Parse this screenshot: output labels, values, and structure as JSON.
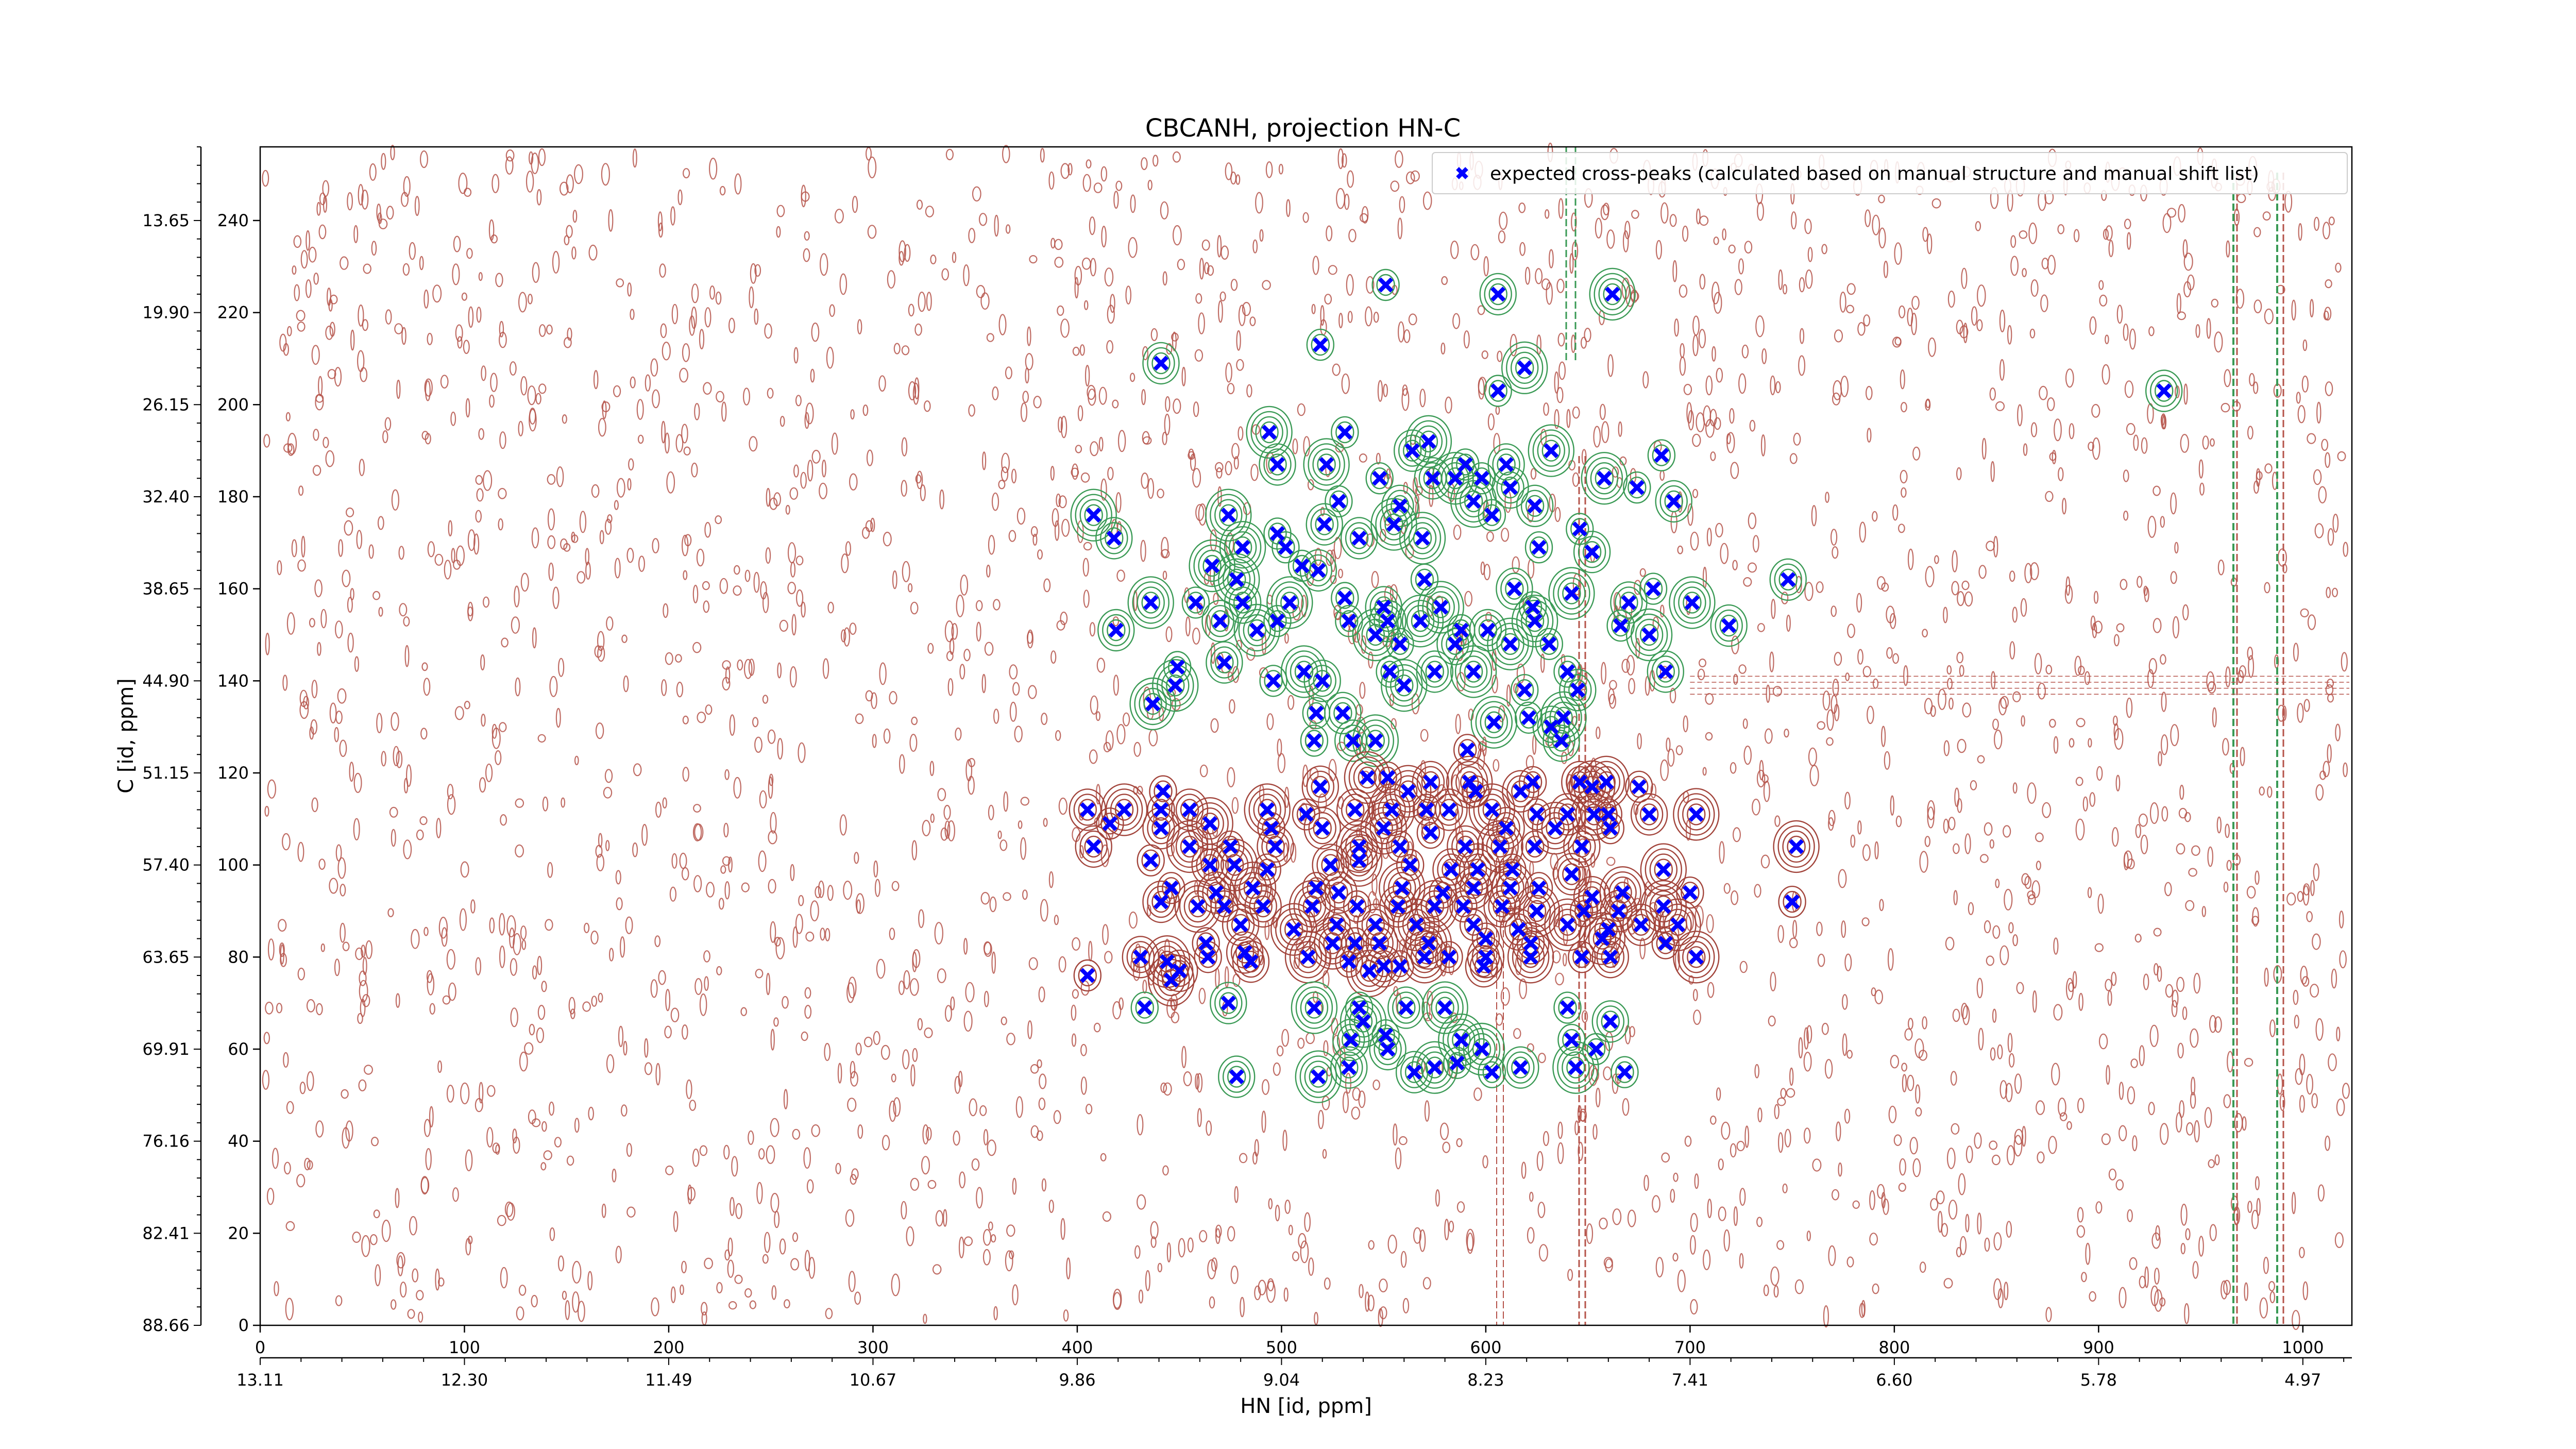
{
  "chart_data": {
    "type": "scatter",
    "title": "CBCANH, projection HN-C",
    "xlabel": "HN [id, ppm]",
    "ylabel": "C [id, ppm]",
    "xlim": [
      0,
      1024
    ],
    "ylim": [
      0,
      256
    ],
    "x_ticks": [
      0,
      100,
      200,
      300,
      400,
      500,
      600,
      700,
      800,
      900,
      1000
    ],
    "y_ticks": [
      0,
      20,
      40,
      60,
      80,
      100,
      120,
      140,
      160,
      180,
      200,
      220,
      240
    ],
    "x_ppm_ticks": [
      {
        "value": 0,
        "label": "13.11"
      },
      {
        "value": 100,
        "label": "12.30"
      },
      {
        "value": 200,
        "label": "11.49"
      },
      {
        "value": 300,
        "label": "10.67"
      },
      {
        "value": 400,
        "label": "9.86"
      },
      {
        "value": 500,
        "label": "9.04"
      },
      {
        "value": 600,
        "label": "8.23"
      },
      {
        "value": 700,
        "label": "7.41"
      },
      {
        "value": 800,
        "label": "6.60"
      },
      {
        "value": 900,
        "label": "5.78"
      },
      {
        "value": 1000,
        "label": "4.97"
      }
    ],
    "y_ppm_ticks": [
      {
        "value": 0,
        "label": "88.66"
      },
      {
        "value": 20,
        "label": "82.41"
      },
      {
        "value": 40,
        "label": "76.16"
      },
      {
        "value": 60,
        "label": "69.91"
      },
      {
        "value": 80,
        "label": "63.65"
      },
      {
        "value": 100,
        "label": "57.40"
      },
      {
        "value": 120,
        "label": "51.15"
      },
      {
        "value": 140,
        "label": "44.90"
      },
      {
        "value": 160,
        "label": "38.65"
      },
      {
        "value": 180,
        "label": "32.40"
      },
      {
        "value": 200,
        "label": "26.15"
      },
      {
        "value": 220,
        "label": "19.90"
      },
      {
        "value": 240,
        "label": "13.65"
      }
    ],
    "grid": false,
    "legend_position": "top-right",
    "series": [
      {
        "name": "expected cross-peaks (calculated based on manual structure and manual shift list)",
        "color": "#0000ff",
        "marker": "x",
        "points": [
          [
            551,
            226
          ],
          [
            606,
            224
          ],
          [
            662,
            224
          ],
          [
            519,
            213
          ],
          [
            441,
            209
          ],
          [
            619,
            208
          ],
          [
            606,
            203
          ],
          [
            932,
            203
          ],
          [
            494,
            194
          ],
          [
            531,
            194
          ],
          [
            564,
            190
          ],
          [
            572,
            192
          ],
          [
            590,
            187
          ],
          [
            610,
            187
          ],
          [
            632,
            190
          ],
          [
            686,
            189
          ],
          [
            498,
            187
          ],
          [
            522,
            187
          ],
          [
            548,
            184
          ],
          [
            574,
            184
          ],
          [
            585,
            184
          ],
          [
            598,
            184
          ],
          [
            612,
            182
          ],
          [
            658,
            184
          ],
          [
            674,
            182
          ],
          [
            692,
            179
          ],
          [
            474,
            176
          ],
          [
            528,
            179
          ],
          [
            558,
            178
          ],
          [
            594,
            179
          ],
          [
            603,
            176
          ],
          [
            624,
            178
          ],
          [
            408,
            176
          ],
          [
            498,
            172
          ],
          [
            521,
            174
          ],
          [
            555,
            174
          ],
          [
            646,
            173
          ],
          [
            418,
            171
          ],
          [
            481,
            169
          ],
          [
            502,
            169
          ],
          [
            538,
            171
          ],
          [
            569,
            171
          ],
          [
            626,
            169
          ],
          [
            652,
            168
          ],
          [
            466,
            165
          ],
          [
            510,
            165
          ],
          [
            518,
            164
          ],
          [
            478,
            162
          ],
          [
            570,
            162
          ],
          [
            614,
            160
          ],
          [
            642,
            159
          ],
          [
            682,
            160
          ],
          [
            748,
            162
          ],
          [
            436,
            157
          ],
          [
            458,
            157
          ],
          [
            481,
            157
          ],
          [
            504,
            157
          ],
          [
            531,
            158
          ],
          [
            550,
            156
          ],
          [
            578,
            156
          ],
          [
            623,
            156
          ],
          [
            670,
            157
          ],
          [
            701,
            157
          ],
          [
            498,
            153
          ],
          [
            470,
            153
          ],
          [
            488,
            151
          ],
          [
            533,
            153
          ],
          [
            552,
            153
          ],
          [
            568,
            153
          ],
          [
            588,
            151
          ],
          [
            601,
            151
          ],
          [
            624,
            153
          ],
          [
            666,
            152
          ],
          [
            719,
            152
          ],
          [
            546,
            150
          ],
          [
            558,
            148
          ],
          [
            585,
            148
          ],
          [
            612,
            148
          ],
          [
            631,
            148
          ],
          [
            419,
            151
          ],
          [
            680,
            150
          ],
          [
            449,
            143
          ],
          [
            472,
            144
          ],
          [
            511,
            142
          ],
          [
            553,
            142
          ],
          [
            575,
            142
          ],
          [
            594,
            142
          ],
          [
            640,
            142
          ],
          [
            688,
            142
          ],
          [
            448,
            139
          ],
          [
            496,
            140
          ],
          [
            520,
            140
          ],
          [
            560,
            139
          ],
          [
            619,
            138
          ],
          [
            645,
            138
          ],
          [
            437,
            135
          ],
          [
            517,
            133
          ],
          [
            530,
            133
          ],
          [
            604,
            131
          ],
          [
            621,
            132
          ],
          [
            632,
            130
          ],
          [
            638,
            132
          ],
          [
            516,
            127
          ],
          [
            535,
            127
          ],
          [
            546,
            127
          ],
          [
            591,
            125
          ],
          [
            637,
            127
          ],
          [
            542,
            119
          ],
          [
            552,
            119
          ],
          [
            573,
            118
          ],
          [
            592,
            118
          ],
          [
            623,
            118
          ],
          [
            646,
            118
          ],
          [
            659,
            118
          ],
          [
            442,
            116
          ],
          [
            519,
            117
          ],
          [
            562,
            116
          ],
          [
            595,
            116
          ],
          [
            617,
            116
          ],
          [
            652,
            117
          ],
          [
            675,
            117
          ],
          [
            405,
            112
          ],
          [
            423,
            112
          ],
          [
            441,
            112
          ],
          [
            455,
            112
          ],
          [
            493,
            112
          ],
          [
            512,
            111
          ],
          [
            536,
            112
          ],
          [
            554,
            112
          ],
          [
            571,
            112
          ],
          [
            582,
            112
          ],
          [
            603,
            112
          ],
          [
            625,
            111
          ],
          [
            640,
            111
          ],
          [
            653,
            111
          ],
          [
            660,
            111
          ],
          [
            680,
            111
          ],
          [
            703,
            111
          ],
          [
            416,
            109
          ],
          [
            441,
            108
          ],
          [
            465,
            109
          ],
          [
            495,
            108
          ],
          [
            520,
            108
          ],
          [
            550,
            108
          ],
          [
            573,
            107
          ],
          [
            610,
            108
          ],
          [
            634,
            108
          ],
          [
            661,
            108
          ],
          [
            408,
            104
          ],
          [
            455,
            104
          ],
          [
            475,
            104
          ],
          [
            497,
            104
          ],
          [
            538,
            104
          ],
          [
            558,
            104
          ],
          [
            590,
            104
          ],
          [
            607,
            104
          ],
          [
            624,
            104
          ],
          [
            647,
            104
          ],
          [
            752,
            104
          ],
          [
            436,
            101
          ],
          [
            465,
            100
          ],
          [
            477,
            100
          ],
          [
            493,
            99
          ],
          [
            524,
            100
          ],
          [
            538,
            101
          ],
          [
            563,
            100
          ],
          [
            583,
            99
          ],
          [
            596,
            99
          ],
          [
            613,
            99
          ],
          [
            642,
            98
          ],
          [
            687,
            99
          ],
          [
            446,
            95
          ],
          [
            468,
            94
          ],
          [
            486,
            95
          ],
          [
            517,
            95
          ],
          [
            528,
            94
          ],
          [
            559,
            95
          ],
          [
            579,
            94
          ],
          [
            594,
            95
          ],
          [
            612,
            95
          ],
          [
            626,
            95
          ],
          [
            652,
            93
          ],
          [
            667,
            94
          ],
          [
            700,
            94
          ],
          [
            441,
            92
          ],
          [
            459,
            91
          ],
          [
            472,
            91
          ],
          [
            491,
            91
          ],
          [
            515,
            91
          ],
          [
            537,
            91
          ],
          [
            557,
            91
          ],
          [
            575,
            91
          ],
          [
            589,
            91
          ],
          [
            608,
            91
          ],
          [
            625,
            90
          ],
          [
            648,
            90
          ],
          [
            665,
            90
          ],
          [
            687,
            91
          ],
          [
            750,
            92
          ],
          [
            480,
            87
          ],
          [
            506,
            86
          ],
          [
            527,
            87
          ],
          [
            546,
            87
          ],
          [
            566,
            87
          ],
          [
            594,
            87
          ],
          [
            616,
            86
          ],
          [
            640,
            87
          ],
          [
            660,
            86
          ],
          [
            676,
            87
          ],
          [
            694,
            87
          ],
          [
            463,
            83
          ],
          [
            482,
            81
          ],
          [
            525,
            83
          ],
          [
            536,
            83
          ],
          [
            548,
            83
          ],
          [
            572,
            83
          ],
          [
            600,
            84
          ],
          [
            622,
            83
          ],
          [
            657,
            84
          ],
          [
            688,
            83
          ],
          [
            431,
            80
          ],
          [
            444,
            79
          ],
          [
            464,
            80
          ],
          [
            485,
            79
          ],
          [
            513,
            80
          ],
          [
            533,
            79
          ],
          [
            550,
            78
          ],
          [
            570,
            80
          ],
          [
            582,
            80
          ],
          [
            600,
            80
          ],
          [
            622,
            80
          ],
          [
            647,
            80
          ],
          [
            661,
            80
          ],
          [
            703,
            80
          ],
          [
            405,
            76
          ],
          [
            450,
            77
          ],
          [
            543,
            77
          ],
          [
            558,
            78
          ],
          [
            599,
            78
          ],
          [
            446,
            75
          ],
          [
            433,
            69
          ],
          [
            474,
            70
          ],
          [
            516,
            69
          ],
          [
            538,
            69
          ],
          [
            561,
            69
          ],
          [
            580,
            69
          ],
          [
            640,
            69
          ],
          [
            661,
            66
          ],
          [
            540,
            66
          ],
          [
            551,
            63
          ],
          [
            534,
            62
          ],
          [
            588,
            62
          ],
          [
            642,
            62
          ],
          [
            552,
            60
          ],
          [
            598,
            60
          ],
          [
            654,
            60
          ],
          [
            533,
            56
          ],
          [
            575,
            56
          ],
          [
            603,
            55
          ],
          [
            617,
            56
          ],
          [
            644,
            56
          ],
          [
            668,
            55
          ],
          [
            478,
            54
          ],
          [
            518,
            54
          ],
          [
            586,
            57
          ],
          [
            565,
            55
          ]
        ]
      }
    ]
  }
}
